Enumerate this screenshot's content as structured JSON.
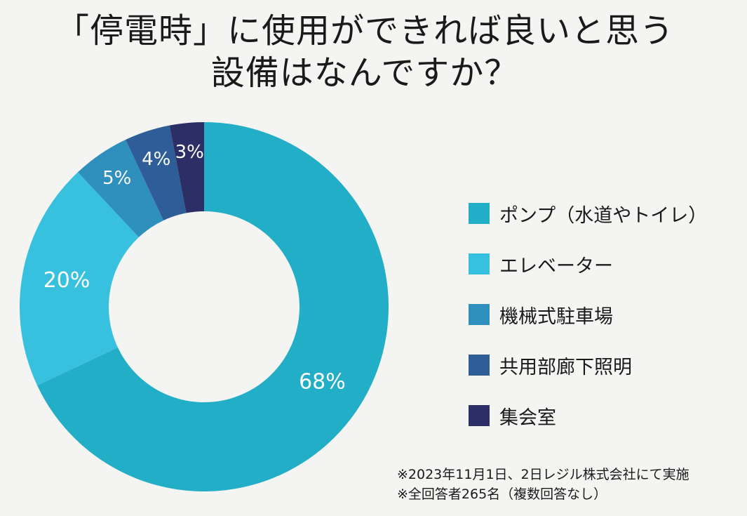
{
  "chart_data": {
    "type": "pie",
    "variant": "donut",
    "title_lines": [
      "「停電時」に使用ができれば良いと思う",
      "設備はなんですか？"
    ],
    "categories": [
      "ポンプ（水道やトイレ）",
      "エレベーター",
      "機械式駐車場",
      "共用部廊下照明",
      "集会室"
    ],
    "values": [
      68,
      20,
      5,
      4,
      3
    ],
    "value_labels": [
      "68%",
      "20%",
      "5%",
      "4%",
      "3%"
    ],
    "unit": "%",
    "colors": [
      "#21aec6",
      "#37c1df",
      "#2f8fbd",
      "#2e5d97",
      "#2b2f66"
    ],
    "legend_position": "right"
  },
  "notes": [
    "※2023年11月1日、2日レジル株式会社にて実施",
    "※全回答者265名（複数回答なし）"
  ]
}
